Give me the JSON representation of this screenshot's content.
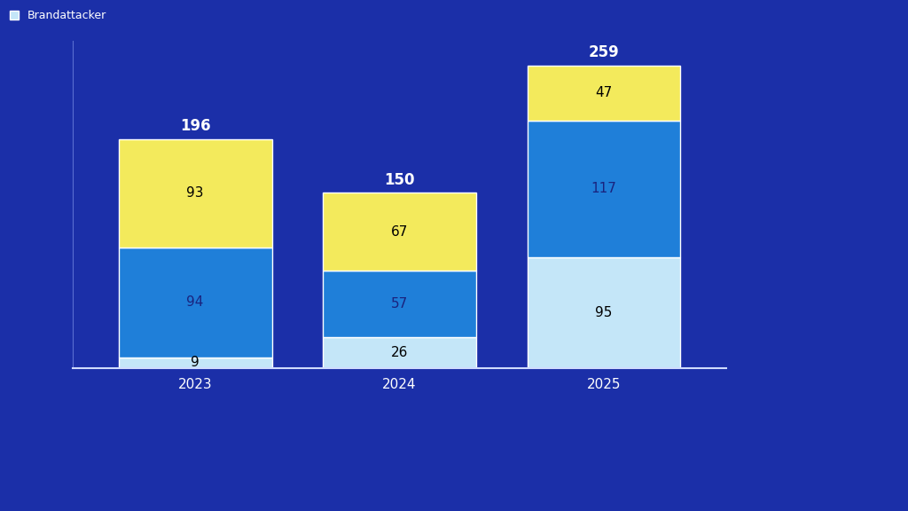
{
  "chart_data": {
    "type": "bar",
    "stacked": true,
    "data_labels": true,
    "categories": [
      "2023",
      "2024",
      "2025"
    ],
    "series": [
      {
        "name": "Brandattacker",
        "color": "#c4e6f8",
        "values": [
          9,
          26,
          95
        ]
      },
      {
        "color": "#1f7fd9",
        "values": [
          94,
          57,
          117
        ]
      },
      {
        "color": "#f3ea5c",
        "values": [
          93,
          67,
          47
        ]
      }
    ],
    "totals": [
      196,
      150,
      259
    ],
    "ylim": [
      0,
      280
    ],
    "yticks": [],
    "legend": "upper left",
    "tick_labels": "x"
  }
}
